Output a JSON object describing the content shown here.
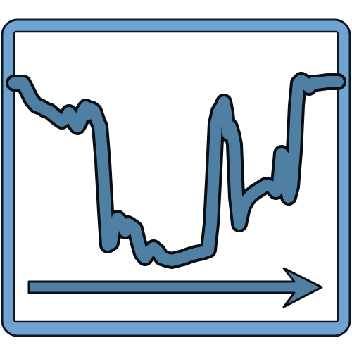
{
  "icon": {
    "name": "trend-timeline-icon",
    "colors": {
      "frame_fill": "#6fa4d0",
      "frame_stroke": "#0d1a26",
      "panel": "#ffffff",
      "line_fill": "#4f7fa3",
      "outline": "#0a0f14"
    }
  }
}
